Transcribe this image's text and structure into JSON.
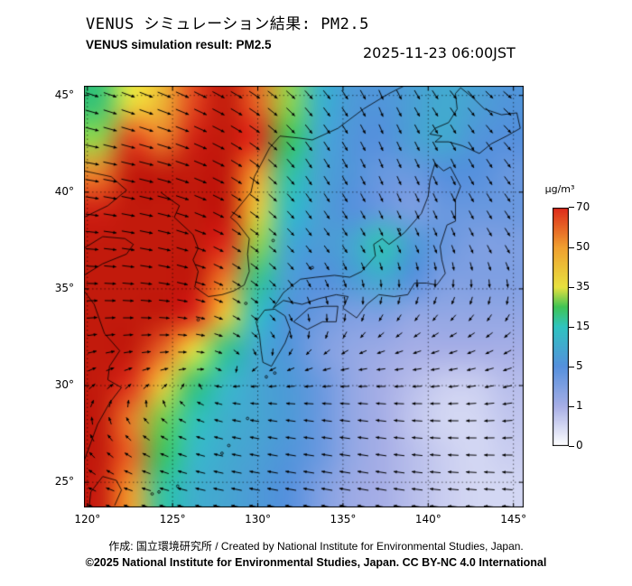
{
  "header": {
    "title_jp": "VENUS シミュレーション結果: PM2.5",
    "title_en": "VENUS simulation result: PM2.5",
    "timestamp": "2025-11-23 06:00JST"
  },
  "footer": {
    "credit": "作成: 国立環境研究所 / Created by National Institute for Environmental Studies, Japan.",
    "copyright": "©2025 National Institute for Environmental Studies, Japan. CC BY-NC 4.0 International"
  },
  "chart_data": {
    "type": "heatmap",
    "title": "VENUS simulation result: PM2.5",
    "variable": "PM2.5",
    "unit": "µg/m³",
    "lon_range": [
      119.8,
      145.6
    ],
    "lat_range": [
      23.7,
      45.5
    ],
    "xticks": {
      "values": [
        120,
        125,
        130,
        135,
        140,
        145
      ],
      "labels": [
        "120°",
        "125°",
        "130°",
        "135°",
        "140°",
        "145°"
      ]
    },
    "yticks": {
      "values": [
        45,
        40,
        35,
        30,
        25
      ],
      "labels": [
        "45°",
        "40°",
        "35°",
        "30°",
        "25°"
      ]
    },
    "colorbar": {
      "unit": "µg/m³",
      "tick_values": [
        0,
        1,
        5,
        15,
        35,
        50,
        70
      ],
      "tick_labels": [
        "0",
        "1",
        "5",
        "15",
        "35",
        "50",
        "70"
      ],
      "stops": [
        {
          "v": 0,
          "c": "#ffffff"
        },
        {
          "v": 1,
          "c": "#a6aee6"
        },
        {
          "v": 5,
          "c": "#5590dd"
        },
        {
          "v": 15,
          "c": "#2fc4c0"
        },
        {
          "v": 25,
          "c": "#3fc455"
        },
        {
          "v": 35,
          "c": "#e8e23f"
        },
        {
          "v": 50,
          "c": "#f0a030"
        },
        {
          "v": 70,
          "c": "#dd2a1a"
        },
        {
          "v": 85,
          "c": "#b51205"
        }
      ]
    },
    "pm25_grid": {
      "lons": [
        120,
        122,
        124,
        126,
        128,
        130,
        132,
        134,
        136,
        138,
        140,
        142,
        144,
        146
      ],
      "lats": [
        46,
        44,
        42,
        40,
        38,
        36,
        34,
        32,
        30,
        28,
        26,
        24
      ],
      "values": [
        [
          22,
          35,
          45,
          65,
          80,
          60,
          30,
          12,
          7,
          6,
          8,
          10,
          8,
          6
        ],
        [
          30,
          65,
          55,
          75,
          80,
          70,
          25,
          10,
          6,
          5,
          8,
          10,
          6,
          5
        ],
        [
          55,
          80,
          80,
          80,
          80,
          50,
          18,
          9,
          6,
          4,
          4,
          5,
          5,
          4
        ],
        [
          75,
          80,
          80,
          80,
          80,
          40,
          14,
          8,
          5,
          4,
          3,
          4,
          4,
          4
        ],
        [
          80,
          80,
          80,
          80,
          70,
          30,
          10,
          7,
          9,
          16,
          7,
          4,
          3,
          3
        ],
        [
          80,
          80,
          80,
          80,
          55,
          20,
          8,
          5,
          7,
          10,
          5,
          3,
          3,
          3
        ],
        [
          80,
          80,
          80,
          70,
          40,
          14,
          6,
          4,
          3,
          3,
          2,
          2,
          2,
          2
        ],
        [
          80,
          80,
          60,
          35,
          20,
          10,
          6,
          3,
          2,
          1.5,
          1,
          1,
          1,
          1
        ],
        [
          80,
          68,
          40,
          22,
          13,
          9,
          7,
          4,
          2,
          1,
          0.8,
          0.6,
          0.6,
          0.8
        ],
        [
          80,
          55,
          28,
          16,
          11,
          9,
          7,
          4,
          2,
          1,
          0.7,
          0.5,
          0.5,
          0.7
        ],
        [
          80,
          60,
          24,
          13,
          10,
          8,
          6,
          4,
          2,
          1,
          0.8,
          0.6,
          0.5,
          0.6
        ],
        [
          78,
          50,
          18,
          11,
          9,
          7,
          5,
          3,
          1.5,
          1,
          0.8,
          0.6,
          0.5,
          0.5
        ]
      ]
    },
    "wind": {
      "lons": [
        120,
        124.3,
        128.6,
        132.9,
        137.2,
        141.5,
        145.8
      ],
      "lats": [
        46,
        41.6,
        37.2,
        32.8,
        28.4,
        24
      ],
      "u": [
        [
          14,
          16,
          14,
          8,
          4,
          6,
          8
        ],
        [
          16,
          18,
          12,
          6,
          3,
          4,
          6
        ],
        [
          14,
          14,
          8,
          4,
          2,
          2,
          4
        ],
        [
          8,
          8,
          4,
          0,
          -2,
          -3,
          -3
        ],
        [
          0,
          -2,
          -5,
          -8,
          -9,
          -9,
          -8
        ],
        [
          -5,
          -8,
          -10,
          -11,
          -11,
          -10,
          -9
        ]
      ],
      "v": [
        [
          -5,
          -7,
          -8,
          -8,
          -9,
          -7,
          -5
        ],
        [
          -3,
          -5,
          -7,
          -9,
          -7,
          -8,
          -7
        ],
        [
          -1,
          -3,
          -5,
          -5,
          -4,
          -5,
          -6
        ],
        [
          1,
          0,
          -2,
          -3,
          -2,
          -2,
          -3
        ],
        [
          3,
          2,
          1,
          1,
          1,
          0,
          -1
        ],
        [
          2,
          2,
          2,
          2,
          2,
          1,
          1
        ]
      ]
    }
  }
}
